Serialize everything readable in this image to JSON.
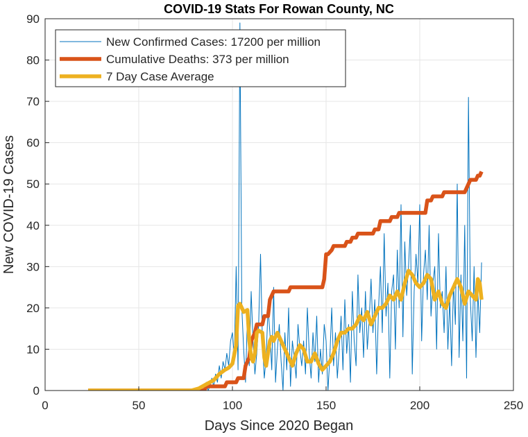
{
  "chart_data": {
    "type": "line",
    "title": "COVID-19 Stats For Rowan County, NC",
    "xlabel": "Days Since 2020 Began",
    "ylabel": "New COVID-19 Cases",
    "xlim": [
      0,
      250
    ],
    "ylim": [
      0,
      90
    ],
    "xticks": [
      0,
      50,
      100,
      150,
      200,
      250
    ],
    "yticks": [
      0,
      10,
      20,
      30,
      40,
      50,
      60,
      70,
      80,
      90
    ],
    "grid": true,
    "legend_position": "top-left",
    "series": [
      {
        "name": "New Confirmed Cases: 17200 per million",
        "color": "#0072BD",
        "line": "thin",
        "x": [
          23,
          75,
          80,
          83,
          85,
          86,
          87,
          88,
          89,
          90,
          91,
          92,
          93,
          94,
          95,
          96,
          97,
          98,
          99,
          100,
          101,
          102,
          103,
          104,
          105,
          106,
          107,
          108,
          109,
          110,
          111,
          112,
          113,
          114,
          115,
          116,
          117,
          118,
          119,
          120,
          121,
          122,
          123,
          124,
          125,
          126,
          127,
          128,
          129,
          130,
          131,
          132,
          133,
          134,
          135,
          136,
          137,
          138,
          139,
          140,
          141,
          142,
          143,
          144,
          145,
          146,
          147,
          148,
          149,
          150,
          151,
          152,
          153,
          154,
          155,
          156,
          157,
          158,
          159,
          160,
          161,
          162,
          163,
          164,
          165,
          166,
          167,
          168,
          169,
          170,
          171,
          172,
          173,
          174,
          175,
          176,
          177,
          178,
          179,
          180,
          181,
          182,
          183,
          184,
          185,
          186,
          187,
          188,
          189,
          190,
          191,
          192,
          193,
          194,
          195,
          196,
          197,
          198,
          199,
          200,
          201,
          202,
          203,
          204,
          205,
          206,
          207,
          208,
          209,
          210,
          211,
          212,
          213,
          214,
          215,
          216,
          217,
          218,
          219,
          220,
          221,
          222,
          223,
          224,
          225,
          226,
          227,
          228,
          229,
          230,
          231,
          232,
          233
        ],
        "y": [
          0,
          0,
          0,
          1,
          0,
          2,
          0,
          1,
          3,
          1,
          4,
          2,
          6,
          3,
          7,
          5,
          9,
          6,
          12,
          14,
          8,
          30,
          5,
          89,
          20,
          10,
          2,
          18,
          6,
          24,
          12,
          4,
          9,
          16,
          33,
          12,
          3,
          8,
          20,
          14,
          5,
          25,
          2,
          10,
          16,
          7,
          0,
          14,
          5,
          20,
          1,
          12,
          8,
          3,
          16,
          10,
          6,
          12,
          4,
          20,
          9,
          3,
          14,
          7,
          18,
          2,
          10,
          4,
          16,
          12,
          0,
          8,
          20,
          6,
          14,
          3,
          10,
          18,
          5,
          22,
          9,
          16,
          2,
          24,
          12,
          6,
          28,
          14,
          20,
          8,
          24,
          10,
          17,
          27,
          14,
          22,
          4,
          20,
          30,
          14,
          38,
          18,
          26,
          3,
          24,
          28,
          10,
          34,
          20,
          45,
          13,
          36,
          23,
          30,
          40,
          4,
          24,
          33,
          26,
          45,
          12,
          28,
          34,
          22,
          40,
          18,
          26,
          30,
          10,
          38,
          20,
          24,
          14,
          30,
          10,
          22,
          6,
          26,
          16,
          50,
          8,
          28,
          12,
          40,
          3,
          71,
          22,
          12,
          30,
          8,
          24,
          14,
          31
        ]
      },
      {
        "name": "Cumulative Deaths: 373 per million",
        "color": "#D95319",
        "line": "thick",
        "x": [
          23,
          85,
          86,
          96,
          97,
          102,
          103,
          106,
          107,
          109,
          110,
          112,
          113,
          116,
          117,
          119,
          120,
          121,
          122,
          130,
          131,
          148,
          149,
          150,
          151,
          153,
          154,
          160,
          161,
          163,
          164,
          166,
          167,
          168,
          169,
          175,
          176,
          178,
          179,
          184,
          185,
          188,
          189,
          196,
          197,
          203,
          204,
          206,
          207,
          212,
          213,
          224,
          225,
          226,
          227,
          230,
          231,
          232,
          233
        ],
        "y": [
          0,
          0,
          1,
          1,
          2,
          2,
          3,
          3,
          6,
          8,
          12,
          14,
          16,
          16,
          18,
          18,
          22,
          23,
          24,
          24,
          25,
          25,
          27,
          33,
          33,
          34,
          35,
          35,
          36,
          36,
          37,
          37,
          38,
          38,
          38,
          38,
          39,
          39,
          41,
          41,
          42,
          42,
          43,
          43,
          43,
          43,
          46,
          46,
          47,
          47,
          48,
          48,
          49,
          50,
          51,
          51,
          52,
          52,
          53
        ]
      },
      {
        "name": "7 Day Case Average",
        "color": "#EDB120",
        "line": "thick",
        "x": [
          23,
          78,
          82,
          86,
          90,
          93,
          96,
          98,
          100,
          102,
          103,
          104,
          106,
          108,
          109,
          110,
          111,
          112,
          113,
          114,
          116,
          117,
          118,
          119,
          120,
          121,
          122,
          124,
          126,
          128,
          130,
          132,
          134,
          136,
          138,
          140,
          142,
          144,
          146,
          148,
          150,
          152,
          154,
          156,
          158,
          160,
          162,
          164,
          166,
          168,
          170,
          172,
          174,
          176,
          178,
          180,
          182,
          184,
          186,
          188,
          190,
          192,
          194,
          196,
          198,
          200,
          202,
          204,
          206,
          208,
          210,
          212,
          214,
          216,
          218,
          220,
          222,
          224,
          226,
          228,
          230,
          231,
          232,
          233
        ],
        "y": [
          0,
          0,
          0.5,
          1.5,
          2.5,
          4,
          5,
          5.5,
          6.5,
          11,
          20.5,
          21,
          19,
          19.5,
          12,
          8,
          7,
          9,
          14,
          14.5,
          14,
          8,
          6,
          9,
          12,
          13,
          12,
          14,
          12,
          10,
          8,
          6,
          9,
          11,
          10,
          7,
          7,
          9,
          6.5,
          5,
          6,
          7,
          9,
          12,
          14,
          14,
          15,
          15,
          16,
          18,
          17,
          19,
          16,
          18,
          20,
          20,
          21,
          23,
          22,
          24,
          22,
          26,
          29,
          28,
          26,
          25,
          26,
          28,
          27,
          22,
          24,
          21,
          20,
          23,
          25,
          27,
          25,
          21,
          24,
          23,
          22,
          27,
          26,
          22
        ]
      }
    ]
  }
}
